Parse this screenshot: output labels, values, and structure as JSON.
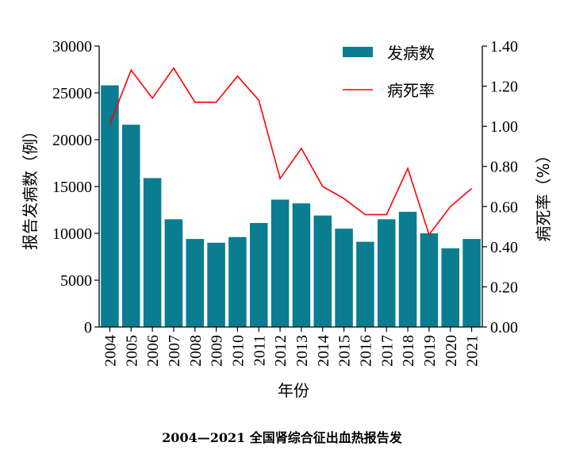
{
  "caption": "2004—2021 全国肾综合征出血热报告发",
  "chart_data": {
    "type": "bar+line",
    "categories": [
      "2004",
      "2005",
      "2006",
      "2007",
      "2008",
      "2009",
      "2010",
      "2011",
      "2012",
      "2013",
      "2014",
      "2015",
      "2016",
      "2017",
      "2018",
      "2019",
      "2020",
      "2021"
    ],
    "series": [
      {
        "name": "发病数",
        "type": "bar",
        "axis": "left",
        "color": "#0a7d91",
        "values": [
          25800,
          21600,
          15900,
          11500,
          9400,
          9000,
          9600,
          11100,
          13600,
          13200,
          11900,
          10500,
          9100,
          11500,
          12300,
          10000,
          8400,
          9400
        ]
      },
      {
        "name": "病死率",
        "type": "line",
        "axis": "right",
        "color": "#ff0000",
        "values": [
          1.01,
          1.28,
          1.14,
          1.29,
          1.12,
          1.12,
          1.25,
          1.13,
          0.74,
          0.89,
          0.7,
          0.64,
          0.56,
          0.56,
          0.79,
          0.46,
          0.6,
          0.69
        ]
      }
    ],
    "xlabel": "年份",
    "ylabel_left": "报告发病数（例）",
    "ylabel_right": "病死率（%）",
    "ylim_left": [
      0,
      30000
    ],
    "ylim_right": [
      0,
      1.4
    ],
    "yticks_left": [
      "0",
      "5000",
      "10000",
      "15000",
      "20000",
      "25000",
      "30000"
    ],
    "yticks_right": [
      "0.00",
      "0.20",
      "0.40",
      "0.60",
      "0.80",
      "1.00",
      "1.20",
      "1.40"
    ],
    "legend_position": "top-right",
    "grid": false
  }
}
